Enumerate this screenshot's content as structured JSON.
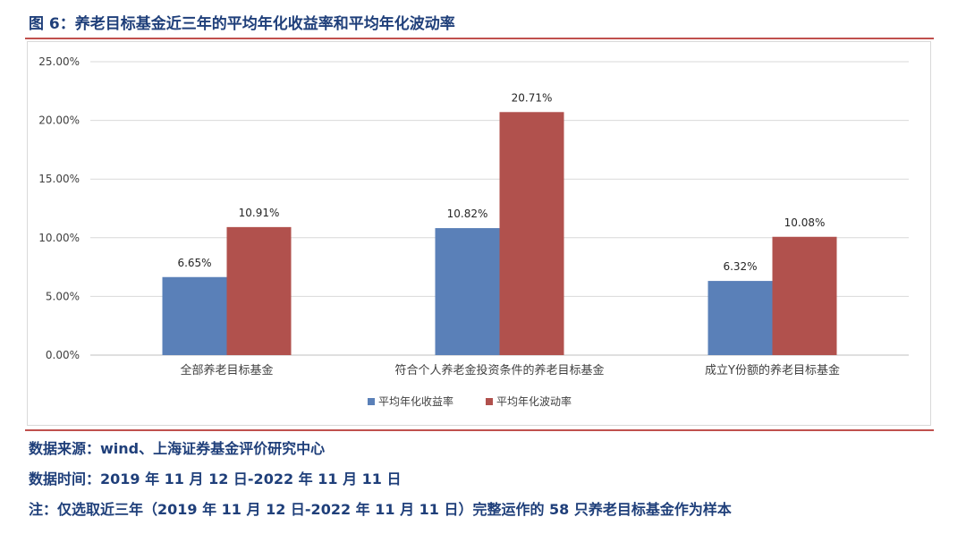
{
  "figure_title": "图 6：养老目标基金近三年的平均年化收益率和平均年化波动率",
  "notes": {
    "source": "数据来源：wind、上海证券基金评价研究中心",
    "time": "数据时间：2019 年 11 月 12 日-2022 年 11 月 11 日",
    "note": "注：仅选取近三年（2019 年 11 月 12 日-2022 年 11 月 11 日）完整运作的 58 只养老目标基金作为样本"
  },
  "colors": {
    "title": "#1f3f7a",
    "rule": "#c0504d",
    "series1": "#5a80b8",
    "series2": "#b1514d",
    "grid": "#d9d9d9"
  },
  "chart_data": {
    "type": "bar",
    "categories": [
      "全部养老目标基金",
      "符合个人养老金投资条件的养老目标基金",
      "成立Y份额的养老目标基金"
    ],
    "series": [
      {
        "name": "平均年化收益率",
        "values": [
          6.65,
          10.82,
          6.32
        ],
        "labels": [
          "6.65%",
          "10.82%",
          "6.32%"
        ]
      },
      {
        "name": "平均年化波动率",
        "values": [
          10.91,
          20.71,
          10.08
        ],
        "labels": [
          "10.91%",
          "20.71%",
          "10.08%"
        ]
      }
    ],
    "ylim": [
      0,
      25
    ],
    "yticks": [
      0,
      5,
      10,
      15,
      20,
      25
    ],
    "ytick_labels": [
      "0.00%",
      "5.00%",
      "10.00%",
      "15.00%",
      "20.00%",
      "25.00%"
    ],
    "grid": true,
    "legend_position": "bottom-center"
  }
}
